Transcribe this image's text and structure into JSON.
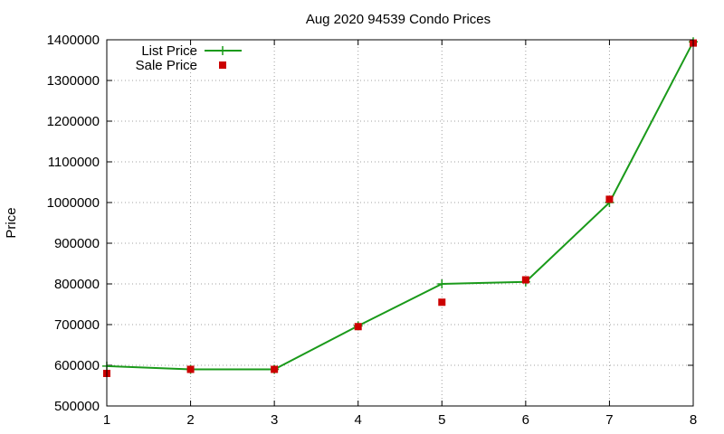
{
  "chart_data": {
    "type": "line",
    "title": "Aug 2020 94539 Condo Prices",
    "xlabel": "",
    "ylabel": "Price",
    "x": [
      1,
      2,
      3,
      4,
      5,
      6,
      7,
      8
    ],
    "xlim": [
      1,
      8
    ],
    "ylim": [
      500000,
      1400000
    ],
    "xticks": [
      "1",
      "2",
      "3",
      "4",
      "5",
      "6",
      "7",
      "8"
    ],
    "yticks": [
      "500000",
      "600000",
      "700000",
      "800000",
      "900000",
      "1000000",
      "1100000",
      "1200000",
      "1300000",
      "1400000"
    ],
    "grid": true,
    "legend_position": "top-left",
    "series": [
      {
        "name": "List Price",
        "style": "line-with-plus-markers",
        "color": "#1a9a1a",
        "values": [
          598000,
          590000,
          590000,
          697000,
          800000,
          805000,
          1000000,
          1395000
        ]
      },
      {
        "name": "Sale Price",
        "style": "square-markers",
        "color": "#cc0000",
        "values": [
          580000,
          590000,
          590000,
          695000,
          755000,
          810000,
          1008000,
          1392000
        ]
      }
    ]
  }
}
